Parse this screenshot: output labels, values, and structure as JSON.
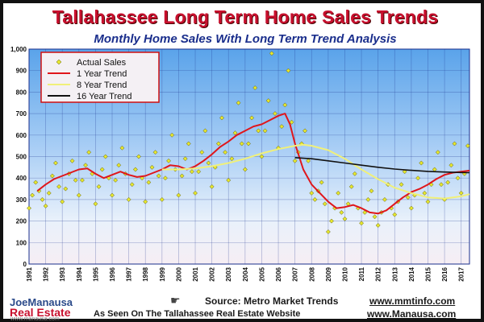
{
  "page": {
    "title": "Tallahassee Long Term Home Sales Trends",
    "subtitle": "Monthly Home Sales With Long Term Trend Analysis"
  },
  "footer": {
    "brand_top": "JoeManausa",
    "brand_bottom": "Real Estate",
    "brand_url": "www.manausa.com",
    "source_label": "Source:  Metro Market Trends",
    "source_url": "www.mmtinfo.com",
    "tagline": "As Seen On The Tallahassee Real Estate Website",
    "site_url": "www.Manausa.com"
  },
  "colors": {
    "actual": "#e6e62e",
    "trend1": "#e0161b",
    "trend8": "#f0f07a",
    "trend16": "#111111",
    "title": "#c8102e",
    "subtitle": "#1a2e8c"
  },
  "chart_data": {
    "type": "line",
    "title": "Tallahassee Long Term Home Sales Trends",
    "subtitle": "Monthly Home Sales With Long Term Trend Analysis",
    "xlim": [
      1991,
      2017.5
    ],
    "ylim": [
      0,
      1000
    ],
    "x_ticks": [
      "1991",
      "1992",
      "1993",
      "1994",
      "1995",
      "1996",
      "1997",
      "1998",
      "1999",
      "2000",
      "2001",
      "2002",
      "2003",
      "2004",
      "2005",
      "2006",
      "2007",
      "2008",
      "2009",
      "2010",
      "2011",
      "2012",
      "2013",
      "2014",
      "2015",
      "2016",
      "2017"
    ],
    "y_ticks": [
      0,
      100,
      200,
      300,
      400,
      500,
      600,
      700,
      800,
      900,
      1000
    ],
    "y_tick_labels": [
      "0",
      "100",
      "200",
      "300",
      "400",
      "500",
      "600",
      "700",
      "800",
      "900",
      "1,000"
    ],
    "grid": true,
    "legend_position": "top-left",
    "series": [
      {
        "name": "Actual Sales",
        "kind": "scatter",
        "color": "#e6e62e",
        "points": [
          [
            1991.0,
            260
          ],
          [
            1991.2,
            320
          ],
          [
            1991.4,
            380
          ],
          [
            1991.6,
            340
          ],
          [
            1991.8,
            300
          ],
          [
            1992.0,
            270
          ],
          [
            1992.2,
            330
          ],
          [
            1992.4,
            410
          ],
          [
            1992.6,
            470
          ],
          [
            1992.8,
            360
          ],
          [
            1993.0,
            290
          ],
          [
            1993.2,
            350
          ],
          [
            1993.4,
            420
          ],
          [
            1993.6,
            480
          ],
          [
            1993.8,
            390
          ],
          [
            1994.0,
            320
          ],
          [
            1994.2,
            390
          ],
          [
            1994.4,
            460
          ],
          [
            1994.6,
            520
          ],
          [
            1994.8,
            420
          ],
          [
            1995.0,
            280
          ],
          [
            1995.2,
            360
          ],
          [
            1995.4,
            440
          ],
          [
            1995.6,
            500
          ],
          [
            1995.8,
            400
          ],
          [
            1996.0,
            320
          ],
          [
            1996.2,
            390
          ],
          [
            1996.4,
            460
          ],
          [
            1996.6,
            540
          ],
          [
            1996.8,
            420
          ],
          [
            1997.0,
            300
          ],
          [
            1997.2,
            370
          ],
          [
            1997.4,
            440
          ],
          [
            1997.6,
            500
          ],
          [
            1997.8,
            400
          ],
          [
            1998.0,
            290
          ],
          [
            1998.2,
            380
          ],
          [
            1998.4,
            450
          ],
          [
            1998.6,
            520
          ],
          [
            1998.8,
            410
          ],
          [
            1999.0,
            300
          ],
          [
            1999.2,
            400
          ],
          [
            1999.4,
            480
          ],
          [
            1999.6,
            600
          ],
          [
            1999.8,
            440
          ],
          [
            2000.0,
            320
          ],
          [
            2000.2,
            410
          ],
          [
            2000.4,
            490
          ],
          [
            2000.6,
            560
          ],
          [
            2000.8,
            430
          ],
          [
            2001.0,
            330
          ],
          [
            2001.2,
            430
          ],
          [
            2001.4,
            520
          ],
          [
            2001.6,
            620
          ],
          [
            2001.8,
            470
          ],
          [
            2002.0,
            360
          ],
          [
            2002.2,
            450
          ],
          [
            2002.4,
            560
          ],
          [
            2002.6,
            680
          ],
          [
            2002.8,
            520
          ],
          [
            2003.0,
            390
          ],
          [
            2003.2,
            490
          ],
          [
            2003.4,
            610
          ],
          [
            2003.6,
            750
          ],
          [
            2003.8,
            560
          ],
          [
            2004.0,
            440
          ],
          [
            2004.2,
            560
          ],
          [
            2004.4,
            680
          ],
          [
            2004.6,
            820
          ],
          [
            2004.8,
            620
          ],
          [
            2005.0,
            500
          ],
          [
            2005.2,
            620
          ],
          [
            2005.4,
            760
          ],
          [
            2005.6,
            980
          ],
          [
            2005.8,
            700
          ],
          [
            2006.0,
            540
          ],
          [
            2006.2,
            640
          ],
          [
            2006.4,
            740
          ],
          [
            2006.6,
            900
          ],
          [
            2006.8,
            660
          ],
          [
            2007.0,
            480
          ],
          [
            2007.2,
            520
          ],
          [
            2007.4,
            560
          ],
          [
            2007.6,
            620
          ],
          [
            2007.8,
            480
          ],
          [
            2008.0,
            330
          ],
          [
            2008.2,
            300
          ],
          [
            2008.4,
            340
          ],
          [
            2008.6,
            380
          ],
          [
            2008.8,
            280
          ],
          [
            2009.0,
            150
          ],
          [
            2009.2,
            200
          ],
          [
            2009.4,
            260
          ],
          [
            2009.6,
            330
          ],
          [
            2009.8,
            240
          ],
          [
            2010.0,
            210
          ],
          [
            2010.2,
            280
          ],
          [
            2010.4,
            360
          ],
          [
            2010.6,
            420
          ],
          [
            2010.8,
            260
          ],
          [
            2011.0,
            190
          ],
          [
            2011.2,
            240
          ],
          [
            2011.4,
            300
          ],
          [
            2011.6,
            340
          ],
          [
            2011.8,
            220
          ],
          [
            2012.0,
            180
          ],
          [
            2012.2,
            240
          ],
          [
            2012.4,
            300
          ],
          [
            2012.6,
            370
          ],
          [
            2012.8,
            260
          ],
          [
            2013.0,
            230
          ],
          [
            2013.2,
            290
          ],
          [
            2013.4,
            370
          ],
          [
            2013.6,
            430
          ],
          [
            2013.8,
            310
          ],
          [
            2014.0,
            260
          ],
          [
            2014.2,
            320
          ],
          [
            2014.4,
            400
          ],
          [
            2014.6,
            470
          ],
          [
            2014.8,
            330
          ],
          [
            2015.0,
            290
          ],
          [
            2015.2,
            370
          ],
          [
            2015.4,
            440
          ],
          [
            2015.6,
            520
          ],
          [
            2015.8,
            370
          ],
          [
            2016.0,
            300
          ],
          [
            2016.2,
            380
          ],
          [
            2016.4,
            460
          ],
          [
            2016.6,
            560
          ],
          [
            2016.8,
            400
          ],
          [
            2017.0,
            330
          ],
          [
            2017.2,
            420
          ],
          [
            2017.4,
            550
          ]
        ]
      },
      {
        "name": "1 Year Trend",
        "kind": "line",
        "color": "#e0161b",
        "points": [
          [
            1991.5,
            340
          ],
          [
            1992.0,
            370
          ],
          [
            1992.5,
            395
          ],
          [
            1993.0,
            410
          ],
          [
            1993.5,
            425
          ],
          [
            1994.0,
            440
          ],
          [
            1994.5,
            445
          ],
          [
            1995.0,
            420
          ],
          [
            1995.5,
            400
          ],
          [
            1996.0,
            415
          ],
          [
            1996.5,
            430
          ],
          [
            1997.0,
            415
          ],
          [
            1997.5,
            405
          ],
          [
            1998.0,
            410
          ],
          [
            1998.5,
            425
          ],
          [
            1999.0,
            440
          ],
          [
            1999.5,
            460
          ],
          [
            2000.0,
            455
          ],
          [
            2000.5,
            440
          ],
          [
            2001.0,
            455
          ],
          [
            2001.5,
            480
          ],
          [
            2002.0,
            510
          ],
          [
            2002.5,
            545
          ],
          [
            2003.0,
            570
          ],
          [
            2003.5,
            600
          ],
          [
            2004.0,
            620
          ],
          [
            2004.5,
            640
          ],
          [
            2005.0,
            650
          ],
          [
            2005.5,
            670
          ],
          [
            2006.0,
            690
          ],
          [
            2006.4,
            700
          ],
          [
            2006.7,
            650
          ],
          [
            2007.0,
            560
          ],
          [
            2007.5,
            440
          ],
          [
            2008.0,
            370
          ],
          [
            2008.5,
            330
          ],
          [
            2009.0,
            290
          ],
          [
            2009.5,
            260
          ],
          [
            2010.0,
            265
          ],
          [
            2010.5,
            275
          ],
          [
            2011.0,
            260
          ],
          [
            2011.5,
            240
          ],
          [
            2012.0,
            235
          ],
          [
            2012.5,
            250
          ],
          [
            2013.0,
            280
          ],
          [
            2013.5,
            310
          ],
          [
            2014.0,
            335
          ],
          [
            2014.5,
            350
          ],
          [
            2015.0,
            370
          ],
          [
            2015.5,
            395
          ],
          [
            2016.0,
            415
          ],
          [
            2016.5,
            425
          ],
          [
            2017.0,
            430
          ],
          [
            2017.5,
            435
          ]
        ]
      },
      {
        "name": "8 Year Trend",
        "kind": "line",
        "color": "#f0f07a",
        "points": [
          [
            1999.0,
            440
          ],
          [
            2000.0,
            440
          ],
          [
            2001.0,
            445
          ],
          [
            2002.0,
            455
          ],
          [
            2003.0,
            470
          ],
          [
            2004.0,
            490
          ],
          [
            2005.0,
            515
          ],
          [
            2006.0,
            535
          ],
          [
            2007.0,
            550
          ],
          [
            2007.5,
            555
          ],
          [
            2008.0,
            550
          ],
          [
            2009.0,
            530
          ],
          [
            2010.0,
            490
          ],
          [
            2011.0,
            440
          ],
          [
            2012.0,
            395
          ],
          [
            2013.0,
            355
          ],
          [
            2014.0,
            330
          ],
          [
            2015.0,
            310
          ],
          [
            2016.0,
            305
          ],
          [
            2017.0,
            315
          ],
          [
            2017.5,
            325
          ]
        ]
      },
      {
        "name": "16 Year Trend",
        "kind": "line",
        "color": "#111111",
        "points": [
          [
            2007.0,
            495
          ],
          [
            2008.0,
            490
          ],
          [
            2009.0,
            480
          ],
          [
            2010.0,
            470
          ],
          [
            2011.0,
            460
          ],
          [
            2012.0,
            450
          ],
          [
            2013.0,
            442
          ],
          [
            2014.0,
            436
          ],
          [
            2015.0,
            431
          ],
          [
            2016.0,
            428
          ],
          [
            2017.0,
            426
          ],
          [
            2017.5,
            425
          ]
        ]
      }
    ]
  }
}
